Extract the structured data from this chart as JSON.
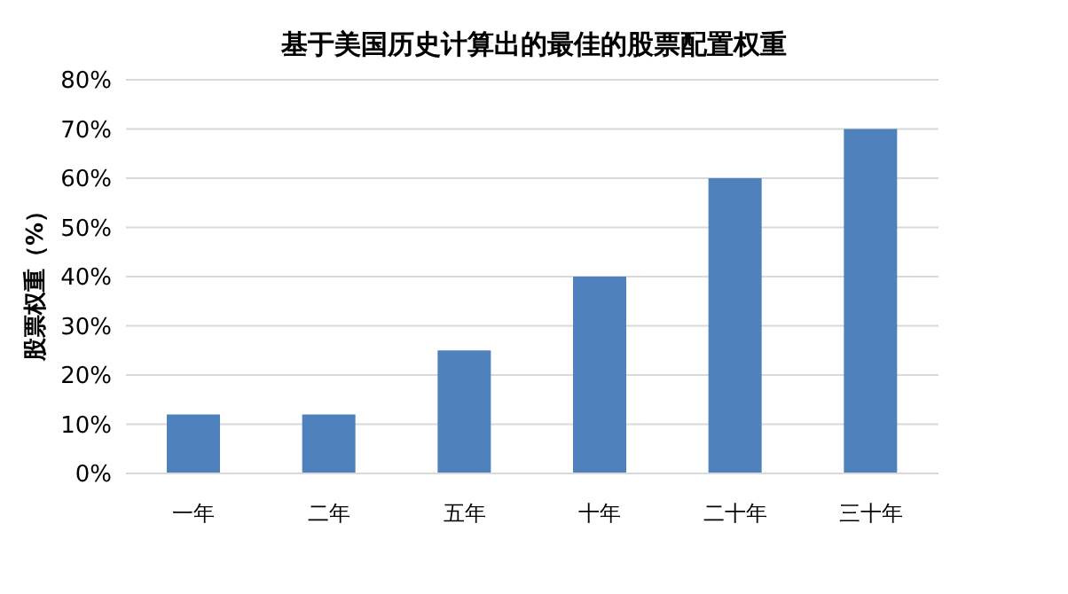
{
  "chart_data": {
    "type": "bar",
    "title": "基于美国历史计算出的最佳的股票配置权重",
    "ylabel": "股票权重（%）",
    "categories": [
      "一年",
      "二年",
      "五年",
      "十年",
      "二十年",
      "三十年"
    ],
    "values": [
      12,
      12,
      25,
      40,
      60,
      70
    ],
    "color": "#4f81bd",
    "ylim": [
      0,
      80
    ],
    "yticks": [
      {
        "value": 0,
        "label": "0%"
      },
      {
        "value": 10,
        "label": "10%"
      },
      {
        "value": 20,
        "label": "20%"
      },
      {
        "value": 30,
        "label": "30%"
      },
      {
        "value": 40,
        "label": "40%"
      },
      {
        "value": 50,
        "label": "50%"
      },
      {
        "value": 60,
        "label": "60%"
      },
      {
        "value": 70,
        "label": "70%"
      },
      {
        "value": 80,
        "label": "80%"
      }
    ],
    "grid": "y"
  }
}
